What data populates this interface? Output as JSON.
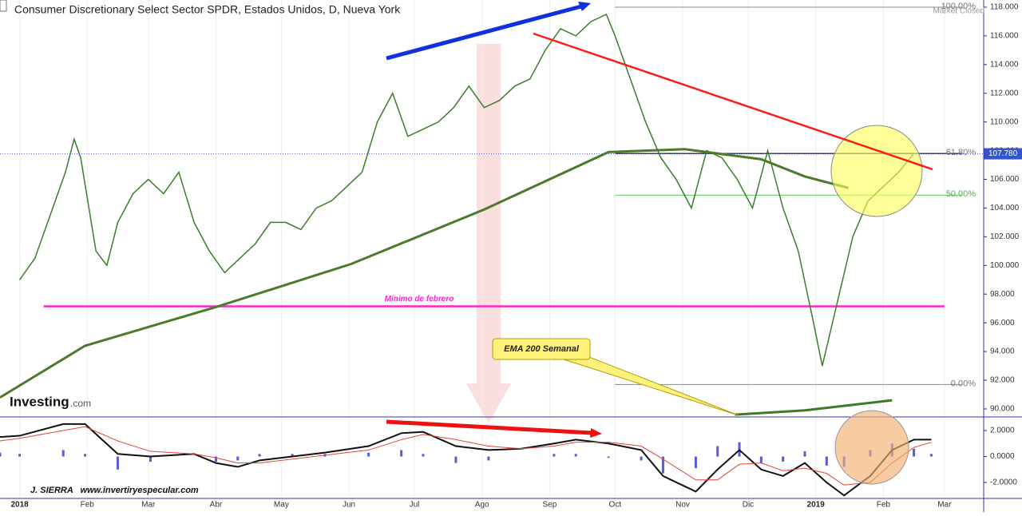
{
  "chart_data": [
    {
      "type": "line",
      "title": "Consumer Discretionary Select Sector SPDR, Estados Unidos, D, Nueva York",
      "status": "Market Closed",
      "brand": "Investing",
      "brand_suffix": ".com",
      "credit": "J. SIERRA   www.invertiryespecular.com",
      "xlim": [
        -9,
        442
      ],
      "xticks": [
        {
          "value": 0,
          "label": "2018"
        },
        {
          "value": 31,
          "label": "Feb"
        },
        {
          "value": 59,
          "label": "Mar"
        },
        {
          "value": 90,
          "label": "Abr"
        },
        {
          "value": 120,
          "label": "May"
        },
        {
          "value": 151,
          "label": "Jun"
        },
        {
          "value": 181,
          "label": "Jul"
        },
        {
          "value": 212,
          "label": "Ago"
        },
        {
          "value": 243,
          "label": "Sep"
        },
        {
          "value": 273,
          "label": "Oct"
        },
        {
          "value": 304,
          "label": "Nov"
        },
        {
          "value": 334,
          "label": "Dic"
        },
        {
          "value": 365,
          "label": "2019"
        },
        {
          "value": 396,
          "label": "Feb"
        },
        {
          "value": 424,
          "label": "Mar"
        }
      ],
      "ylim": [
        89.44,
        118.5
      ],
      "yticks": [
        {
          "value": 90,
          "label": "90.000"
        },
        {
          "value": 92,
          "label": "92.000"
        },
        {
          "value": 94,
          "label": "94.000"
        },
        {
          "value": 96,
          "label": "96.000"
        },
        {
          "value": 98,
          "label": "98.000"
        },
        {
          "value": 100,
          "label": "100.000"
        },
        {
          "value": 102,
          "label": "102.000"
        },
        {
          "value": 104,
          "label": "104.000"
        },
        {
          "value": 106,
          "label": "106.000"
        },
        {
          "value": 108,
          "label": "108.000"
        },
        {
          "value": 110,
          "label": "110.000"
        },
        {
          "value": 112,
          "label": "112.000"
        },
        {
          "value": 114,
          "label": "114.000"
        },
        {
          "value": 116,
          "label": "116.000"
        },
        {
          "value": 118,
          "label": "118.000"
        }
      ],
      "last_price": {
        "value": 107.78,
        "label": "107.780"
      },
      "series": [
        {
          "color": "#3a7d2c",
          "x": [
            0,
            7,
            14,
            21,
            25,
            28,
            35,
            40,
            45,
            52,
            59,
            66,
            73,
            80,
            87,
            94,
            101,
            108,
            115,
            122,
            129,
            136,
            143,
            150,
            157,
            164,
            171,
            178,
            185,
            192,
            199,
            206,
            213,
            220,
            227,
            234,
            241,
            248,
            255,
            262,
            269,
            273,
            280,
            287,
            294,
            301,
            308,
            315,
            322,
            329,
            336,
            343,
            350,
            357,
            364,
            368,
            375,
            382,
            389,
            396,
            403,
            410
          ],
          "values": [
            99.0,
            100.5,
            103.5,
            106.5,
            108.8,
            107.5,
            101,
            100,
            103,
            105,
            106,
            105,
            106.5,
            103,
            101,
            99.5,
            100.5,
            101.5,
            103,
            103,
            102.5,
            104,
            104.5,
            105.5,
            106.5,
            110,
            112,
            109,
            109.5,
            110,
            111,
            112.5,
            111,
            111.5,
            112.5,
            113,
            115,
            116.5,
            116,
            117,
            117.5,
            116,
            113,
            110,
            107.5,
            106,
            104,
            108,
            107.5,
            106,
            104,
            108,
            104,
            101,
            96,
            93,
            97.5,
            102,
            104.5,
            105.5,
            106.5,
            107.8
          ]
        },
        {
          "color": "#4a7a2a",
          "x": [
            -9,
            30,
            90,
            152,
            213,
            270,
            305,
            340,
            360,
            380
          ],
          "values": [
            90.8,
            94.4,
            97.1,
            100.1,
            103.9,
            107.9,
            108.1,
            107.4,
            106.2,
            105.4
          ]
        },
        {
          "name": "EMA 200 Semanal",
          "color": "#3f7a25",
          "x": [
            328,
            360,
            400
          ],
          "values": [
            89.6,
            89.9,
            90.6
          ]
        }
      ],
      "levels": [
        {
          "value": 118,
          "label": "100.00%"
        },
        {
          "value": 107.8,
          "label": "61.80%"
        },
        {
          "value": 104.9,
          "label": "50.00%"
        },
        {
          "value": 91.7,
          "label": "0.00%"
        }
      ],
      "support": {
        "value": 97.15,
        "label": "Mínimo de febrero"
      }
    },
    {
      "type": "macd",
      "ylim": [
        -3.23,
        3.05
      ],
      "yticks": [
        {
          "value": 2,
          "label": "2.0000"
        },
        {
          "value": 0,
          "label": "0.0000"
        },
        {
          "value": -2,
          "label": "-2.0000"
        }
      ],
      "x": [
        -9,
        0,
        20,
        30,
        45,
        60,
        80,
        90,
        100,
        110,
        125,
        140,
        160,
        175,
        185,
        200,
        215,
        230,
        245,
        255,
        270,
        285,
        295,
        310,
        320,
        330,
        340,
        350,
        360,
        370,
        378,
        390,
        400,
        410,
        418
      ],
      "series": [
        {
          "color": "#111111",
          "values": [
            1.5,
            1.6,
            2.5,
            2.5,
            0.2,
            0.0,
            0.2,
            -0.5,
            -0.8,
            -0.3,
            0,
            0.3,
            0.8,
            1.8,
            1.9,
            0.8,
            0.5,
            0.6,
            1.0,
            1.3,
            1.0,
            0.5,
            -1.5,
            -2.7,
            -1.0,
            0.5,
            -1.0,
            -1.5,
            -0.5,
            -2.0,
            -3.0,
            -1.5,
            0.5,
            1.3,
            1.3
          ]
        },
        {
          "color": "#e0443a",
          "values": [
            1.2,
            1.4,
            2.0,
            2.3,
            1.2,
            0.4,
            0.2,
            -0.1,
            -0.5,
            -0.5,
            -0.2,
            0.1,
            0.5,
            1.3,
            1.7,
            1.3,
            0.8,
            0.6,
            0.8,
            1.1,
            1.1,
            0.8,
            -0.2,
            -1.8,
            -1.8,
            -0.6,
            -0.5,
            -1.1,
            -0.9,
            -1.3,
            -2.2,
            -2.0,
            -0.5,
            0.7,
            1.1
          ]
        }
      ],
      "histogram": {
        "color": "#5b5bd6",
        "values": [
          0.3,
          0.2,
          0.5,
          0.2,
          -1.0,
          -0.4,
          0,
          -0.4,
          -0.3,
          0.2,
          0.2,
          0.2,
          0.3,
          0.5,
          0.2,
          -0.5,
          -0.3,
          0,
          0.2,
          0.2,
          -0.1,
          -0.3,
          -1.3,
          -0.9,
          0.8,
          1.1,
          -0.5,
          -0.4,
          0.4,
          -0.7,
          -0.8,
          0.5,
          1.0,
          0.6,
          0.2
        ]
      }
    }
  ]
}
